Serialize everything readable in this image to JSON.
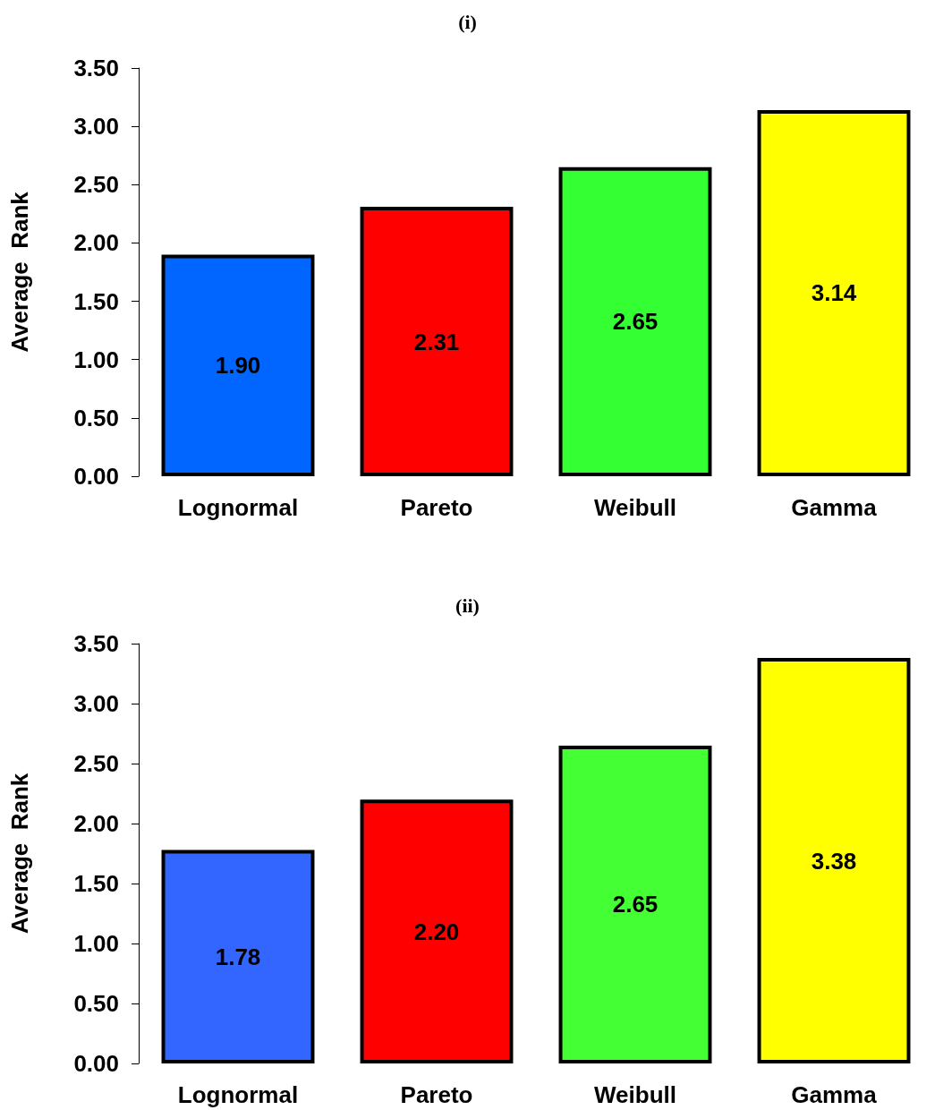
{
  "chart_data": [
    {
      "type": "bar",
      "title": "(i)",
      "ylabel": "Average  Rank",
      "categories": [
        "Lognormal",
        "Pareto",
        "Weibull",
        "Gamma"
      ],
      "values": [
        1.9,
        2.31,
        2.65,
        3.14
      ],
      "colors": [
        "#0066ff",
        "#ff0000",
        "#33ff33",
        "#ffff00"
      ],
      "value_labels": [
        "1.90",
        "2.31",
        "2.65",
        "3.14"
      ],
      "ylim": [
        0,
        3.5
      ],
      "yticks": [
        {
          "value": 0,
          "label": "0.00"
        },
        {
          "value": 0.5,
          "label": "0.50"
        },
        {
          "value": 1,
          "label": "1.00"
        },
        {
          "value": 1.5,
          "label": "1.50"
        },
        {
          "value": 2,
          "label": "2.00"
        },
        {
          "value": 2.5,
          "label": "2.50"
        },
        {
          "value": 3,
          "label": "3.00"
        },
        {
          "value": 3.5,
          "label": "3.50"
        }
      ],
      "grid": false
    },
    {
      "type": "bar",
      "title": "(ii)",
      "ylabel": "Average  Rank",
      "categories": [
        "Lognormal",
        "Pareto",
        "Weibull",
        "Gamma"
      ],
      "values": [
        1.78,
        2.2,
        2.65,
        3.38
      ],
      "colors": [
        "#3366ff",
        "#ff0000",
        "#44ff33",
        "#ffff00"
      ],
      "value_labels": [
        "1.78",
        "2.20",
        "2.65",
        "3.38"
      ],
      "ylim": [
        0,
        3.5
      ],
      "yticks": [
        {
          "value": 0,
          "label": "0.00"
        },
        {
          "value": 0.5,
          "label": "0.50"
        },
        {
          "value": 1,
          "label": "1.00"
        },
        {
          "value": 1.5,
          "label": "1.50"
        },
        {
          "value": 2,
          "label": "2.00"
        },
        {
          "value": 2.5,
          "label": "2.50"
        },
        {
          "value": 3,
          "label": "3.00"
        },
        {
          "value": 3.5,
          "label": "3.50"
        }
      ],
      "grid": false
    }
  ]
}
